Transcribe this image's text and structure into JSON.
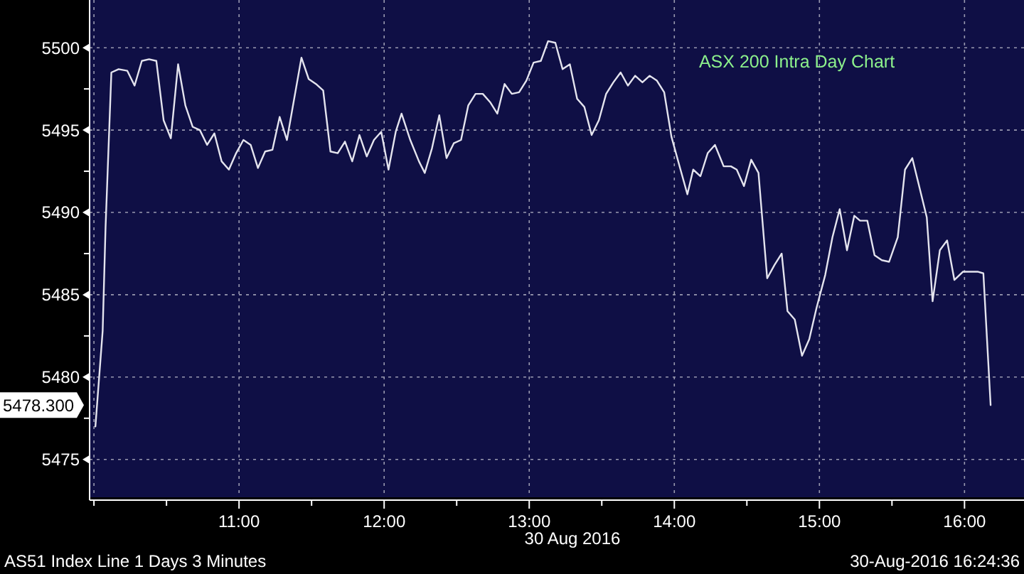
{
  "chart_data": {
    "type": "line",
    "title": "ASX 200 Intra Day Chart",
    "xlabel": "30 Aug 2016",
    "annotations": [
      "AS51 Index Line 1 Days 3 Minutes",
      "30-Aug-2016 16:24:36",
      "5478.300"
    ],
    "xlim": [
      9.97,
      16.41
    ],
    "ylim": [
      5472.7,
      5502.9
    ],
    "xticks": [
      {
        "value": 10,
        "label": null
      },
      {
        "value": 10.5,
        "label": null
      },
      {
        "value": 11,
        "label": "11:00"
      },
      {
        "value": 11.5,
        "label": null
      },
      {
        "value": 12,
        "label": "12:00"
      },
      {
        "value": 12.5,
        "label": null
      },
      {
        "value": 13,
        "label": "13:00"
      },
      {
        "value": 13.5,
        "label": null
      },
      {
        "value": 14,
        "label": "14:00"
      },
      {
        "value": 14.5,
        "label": null
      },
      {
        "value": 15,
        "label": "15:00"
      },
      {
        "value": 15.5,
        "label": null
      },
      {
        "value": 16,
        "label": "16:00"
      }
    ],
    "yticks": [
      5475,
      {
        "value": 5477.5,
        "label": null
      },
      5480,
      {
        "value": 5482.5,
        "label": null
      },
      5485,
      {
        "value": 5487.5,
        "label": null
      },
      5490,
      {
        "value": 5492.5,
        "label": null
      },
      5495,
      {
        "value": 5497.5,
        "label": null
      },
      5500
    ],
    "grid": true,
    "line_style": "solid",
    "marker": "none",
    "series": [
      {
        "color": "#e4e4ee",
        "x": [
          10.01,
          10.06,
          10.08,
          10.12,
          10.17,
          10.23,
          10.28,
          10.33,
          10.38,
          10.43,
          10.48,
          10.53,
          10.58,
          10.63,
          10.68,
          10.73,
          10.78,
          10.83,
          10.88,
          10.93,
          10.98,
          11.03,
          11.08,
          11.13,
          11.18,
          11.23,
          11.28,
          11.33,
          11.38,
          11.43,
          11.48,
          11.53,
          11.58,
          11.63,
          11.68,
          11.73,
          11.78,
          11.83,
          11.88,
          11.93,
          11.98,
          12.03,
          12.08,
          12.12,
          12.18,
          12.24,
          12.28,
          12.33,
          12.38,
          12.43,
          12.48,
          12.53,
          12.58,
          12.63,
          12.68,
          12.73,
          12.78,
          12.83,
          12.88,
          12.93,
          12.98,
          13.03,
          13.08,
          13.13,
          13.18,
          13.23,
          13.28,
          13.33,
          13.38,
          13.43,
          13.48,
          13.53,
          13.58,
          13.63,
          13.68,
          13.73,
          13.78,
          13.83,
          13.88,
          13.93,
          13.98,
          14.03,
          14.09,
          14.13,
          14.18,
          14.23,
          14.28,
          14.34,
          14.39,
          14.43,
          14.48,
          14.53,
          14.58,
          14.64,
          14.69,
          14.74,
          14.78,
          14.83,
          14.88,
          14.93,
          14.98,
          15.04,
          15.09,
          15.14,
          15.19,
          15.24,
          15.28,
          15.33,
          15.38,
          15.43,
          15.48,
          15.54,
          15.59,
          15.64,
          15.69,
          15.74,
          15.78,
          15.83,
          15.88,
          15.93,
          15.99,
          16.04,
          16.09,
          16.13,
          16.18
        ],
        "values": [
          5477.0,
          5482.8,
          5489.1,
          5498.5,
          5498.7,
          5498.6,
          5497.7,
          5499.2,
          5499.3,
          5499.2,
          5495.6,
          5494.5,
          5499.0,
          5496.5,
          5495.2,
          5495.0,
          5494.1,
          5494.8,
          5493.1,
          5492.6,
          5493.6,
          5494.4,
          5494.1,
          5492.7,
          5493.7,
          5493.8,
          5495.8,
          5494.4,
          5496.9,
          5499.4,
          5498.1,
          5497.8,
          5497.4,
          5493.7,
          5493.6,
          5494.3,
          5493.1,
          5494.7,
          5493.4,
          5494.4,
          5494.9,
          5492.6,
          5494.9,
          5496.0,
          5494.4,
          5493.1,
          5492.4,
          5493.9,
          5495.9,
          5493.3,
          5494.2,
          5494.4,
          5496.5,
          5497.2,
          5497.2,
          5496.7,
          5496.0,
          5497.8,
          5497.2,
          5497.3,
          5498.0,
          5499.1,
          5499.2,
          5500.4,
          5500.3,
          5498.7,
          5499.0,
          5496.9,
          5496.4,
          5494.7,
          5495.6,
          5497.2,
          5497.9,
          5498.5,
          5497.7,
          5498.3,
          5497.9,
          5498.3,
          5498.0,
          5497.3,
          5494.6,
          5493.0,
          5491.1,
          5492.6,
          5492.2,
          5493.6,
          5494.1,
          5492.8,
          5492.8,
          5492.6,
          5491.6,
          5493.2,
          5492.4,
          5486.0,
          5486.8,
          5487.5,
          5484.0,
          5483.5,
          5481.3,
          5482.3,
          5484.2,
          5486.2,
          5488.5,
          5490.2,
          5487.7,
          5489.8,
          5489.5,
          5489.5,
          5487.4,
          5487.1,
          5487.0,
          5488.5,
          5492.6,
          5493.3,
          5491.5,
          5489.7,
          5484.6,
          5487.7,
          5488.3,
          5485.9,
          5486.4,
          5486.4,
          5486.4,
          5486.3,
          5478.3
        ]
      }
    ]
  }
}
